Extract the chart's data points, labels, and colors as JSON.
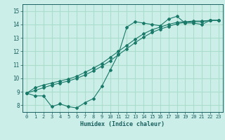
{
  "xlabel": "Humidex (Indice chaleur)",
  "background_color": "#cceee8",
  "grid_color": "#aaddcc",
  "line_color": "#1a7a6a",
  "xlim": [
    -0.5,
    23.5
  ],
  "ylim": [
    7.5,
    15.5
  ],
  "xticks": [
    0,
    1,
    2,
    3,
    4,
    5,
    6,
    7,
    8,
    9,
    10,
    11,
    12,
    13,
    14,
    15,
    16,
    17,
    18,
    19,
    20,
    21,
    22,
    23
  ],
  "yticks": [
    8,
    9,
    10,
    11,
    12,
    13,
    14,
    15
  ],
  "x_main": [
    0,
    1,
    2,
    3,
    4,
    5,
    6,
    7,
    8,
    9,
    10,
    11,
    12,
    13,
    14,
    15,
    16,
    17,
    18,
    19,
    20,
    21,
    22,
    23
  ],
  "y_line1": [
    8.9,
    8.7,
    8.7,
    7.9,
    8.1,
    7.9,
    7.8,
    8.2,
    8.5,
    9.4,
    10.6,
    11.8,
    13.8,
    14.2,
    14.1,
    14.0,
    13.9,
    14.4,
    14.6,
    14.1,
    14.1,
    14.0,
    14.3,
    14.3
  ],
  "y_line2": [
    8.9,
    9.1,
    9.3,
    9.5,
    9.65,
    9.8,
    10.0,
    10.25,
    10.55,
    10.9,
    11.3,
    11.75,
    12.2,
    12.65,
    13.05,
    13.4,
    13.65,
    13.85,
    14.05,
    14.15,
    14.2,
    14.2,
    14.3,
    14.3
  ],
  "y_line3": [
    8.9,
    9.3,
    9.5,
    9.65,
    9.8,
    9.95,
    10.15,
    10.45,
    10.75,
    11.1,
    11.55,
    12.0,
    12.45,
    12.9,
    13.3,
    13.6,
    13.8,
    14.0,
    14.15,
    14.2,
    14.25,
    14.25,
    14.3,
    14.3
  ]
}
